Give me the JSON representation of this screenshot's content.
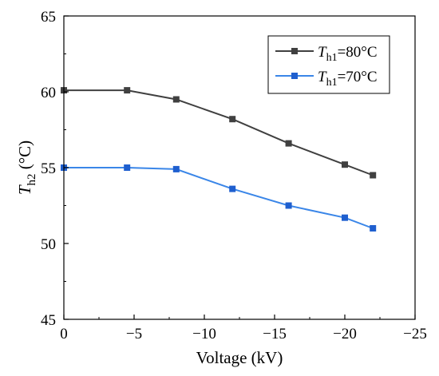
{
  "chart_data": {
    "type": "line",
    "title": "",
    "xlabel": "Voltage (kV)",
    "ylabel": {
      "italic": "T",
      "sub": "h2",
      "rest": " (°C)"
    },
    "x": [
      0,
      -4.5,
      -8,
      -12,
      -16,
      -20,
      -22
    ],
    "xlim": [
      0,
      -25
    ],
    "ylim": [
      45,
      65
    ],
    "xticks": [
      0,
      -5,
      -10,
      -15,
      -20,
      -25
    ],
    "xtick_labels": [
      "0",
      "−5",
      "−10",
      "−15",
      "−20",
      "−25"
    ],
    "yticks": [
      45,
      50,
      55,
      60,
      65
    ],
    "ytick_labels": [
      "45",
      "50",
      "55",
      "60",
      "65"
    ],
    "grid": false,
    "legend_position": "top-right",
    "series": [
      {
        "label": {
          "italic": "T",
          "sub": "h1",
          "rest": "=80°C"
        },
        "values": [
          60.1,
          60.1,
          59.5,
          58.2,
          56.6,
          55.2,
          54.5
        ],
        "line_color": "#404040",
        "marker_color": "#404040",
        "marker": "square"
      },
      {
        "label": {
          "italic": "T",
          "sub": "h1",
          "rest": "=70°C"
        },
        "values": [
          55.0,
          55.0,
          54.9,
          53.6,
          52.5,
          51.7,
          51.0
        ],
        "line_color": "#3a86e8",
        "marker_color": "#1f5fcf",
        "marker": "square"
      }
    ]
  }
}
